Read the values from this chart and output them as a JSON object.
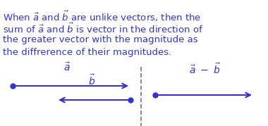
{
  "bg_color": "#ffffff",
  "text_color": "#3333cc",
  "arrow_color": "#3333cc",
  "dashed_color": "#777777",
  "dot_color": "#3333cc",
  "text_line1": "When $\\vec{a}$ and $\\vec{b}$ are unlike vectors, then the",
  "text_line2": "sum of $\\vec{a}$ and $\\vec{b}$ is vector in the direction of",
  "text_line3": "the greater vector with the magnitude as",
  "text_line4": "the diffrerence of their magnitudes.",
  "fontsize_text": 9.5,
  "fontsize_label": 10
}
